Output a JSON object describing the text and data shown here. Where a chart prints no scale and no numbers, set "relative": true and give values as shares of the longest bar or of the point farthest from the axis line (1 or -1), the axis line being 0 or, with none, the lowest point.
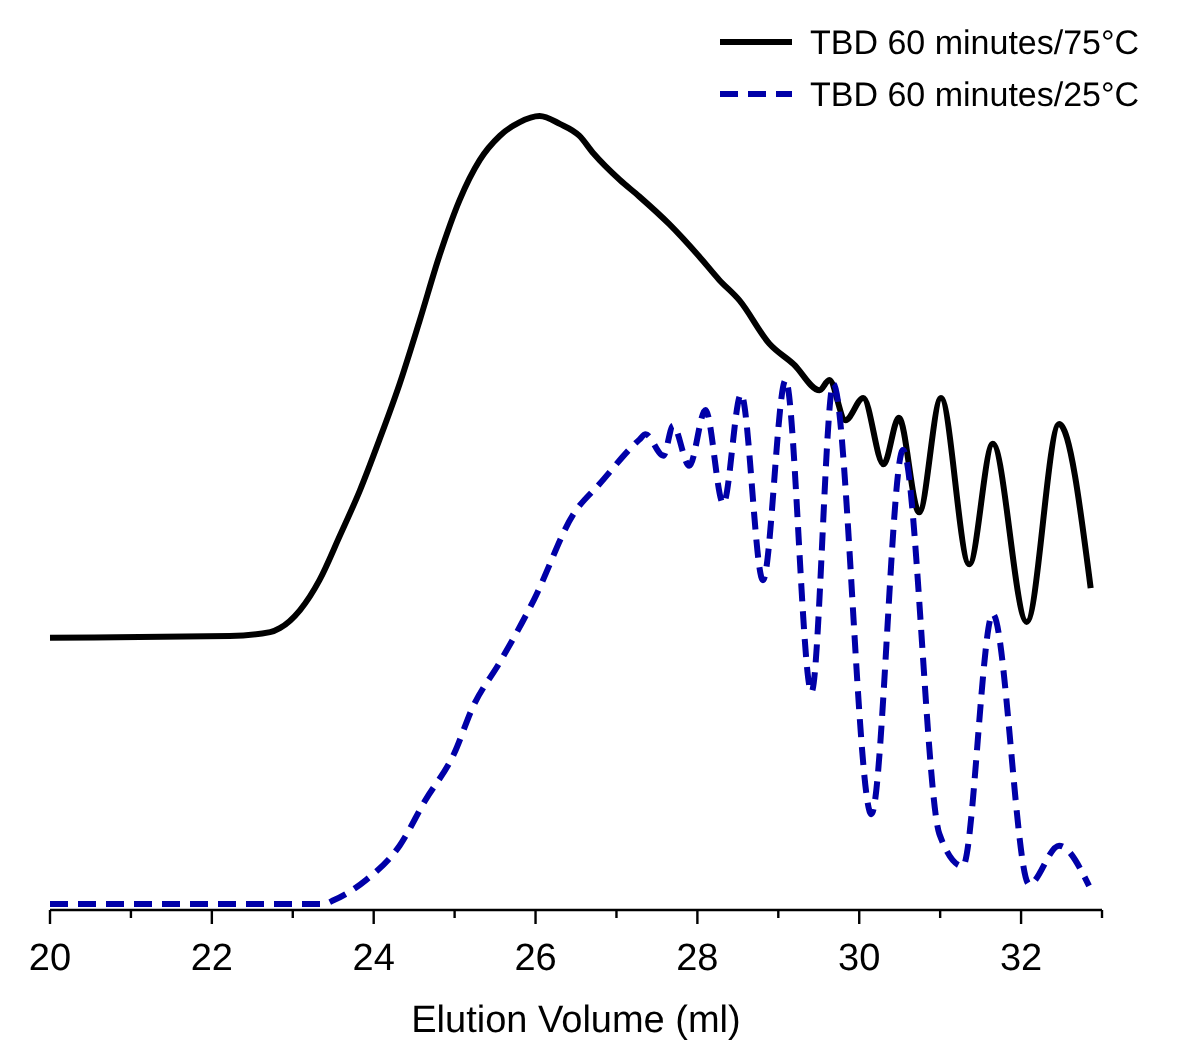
{
  "chart_data": {
    "type": "line",
    "relative": true,
    "xlabel": "Elution Volume (ml)",
    "xlim": [
      20,
      33
    ],
    "xticks": [
      20,
      {
        "value": 21,
        "label": null
      },
      22,
      {
        "value": 23,
        "label": null
      },
      24,
      {
        "value": 25,
        "label": null
      },
      26,
      {
        "value": 27,
        "label": null
      },
      28,
      {
        "value": 29,
        "label": null
      },
      30,
      {
        "value": 31,
        "label": null
      },
      32,
      {
        "value": 33,
        "label": null
      }
    ],
    "legend": "top right",
    "tick_labels": "x",
    "series": [
      {
        "name": "TBD 60 minutes/75°C",
        "color": "#000000",
        "line_style": "solid",
        "x": [
          20.0,
          22.22,
          22.72,
          22.84,
          23.09,
          23.33,
          23.58,
          23.83,
          24.07,
          24.32,
          24.57,
          24.81,
          25.06,
          25.31,
          25.56,
          25.8,
          26.05,
          26.3,
          26.54,
          26.72,
          27.04,
          27.28,
          27.65,
          28.02,
          28.27,
          28.52,
          28.89,
          29.19,
          29.51,
          29.63,
          29.83,
          30.05,
          30.3,
          30.49,
          30.74,
          31.01,
          31.36,
          31.65,
          32.07,
          32.47,
          32.86
        ],
        "values": [
          0.338,
          0.34,
          0.345,
          0.35,
          0.373,
          0.411,
          0.467,
          0.525,
          0.589,
          0.66,
          0.741,
          0.822,
          0.893,
          0.944,
          0.975,
          0.992,
          1.0,
          0.99,
          0.975,
          0.952,
          0.919,
          0.898,
          0.863,
          0.822,
          0.792,
          0.766,
          0.711,
          0.685,
          0.652,
          0.665,
          0.614,
          0.642,
          0.558,
          0.617,
          0.497,
          0.642,
          0.431,
          0.584,
          0.358,
          0.609,
          0.401
        ]
      },
      {
        "name": "TBD 60 minutes/25°C",
        "color": "#0000a8",
        "line_style": "dashed",
        "x": [
          20.0,
          23.38,
          23.51,
          23.9,
          24.32,
          24.64,
          24.99,
          25.23,
          25.56,
          25.98,
          26.47,
          26.79,
          27.28,
          27.36,
          27.58,
          27.7,
          27.9,
          28.1,
          28.32,
          28.54,
          28.81,
          29.09,
          29.41,
          29.68,
          30.15,
          30.54,
          30.99,
          31.28,
          31.65,
          32.1,
          32.47,
          32.84
        ],
        "values": [
          0,
          0,
          0.005,
          0.03,
          0.074,
          0.132,
          0.19,
          0.251,
          0.307,
          0.386,
          0.495,
          0.533,
          0.589,
          0.596,
          0.569,
          0.607,
          0.556,
          0.627,
          0.508,
          0.647,
          0.411,
          0.665,
          0.269,
          0.66,
          0.114,
          0.576,
          0.089,
          0.048,
          0.368,
          0.025,
          0.074,
          0.023
        ]
      }
    ]
  }
}
